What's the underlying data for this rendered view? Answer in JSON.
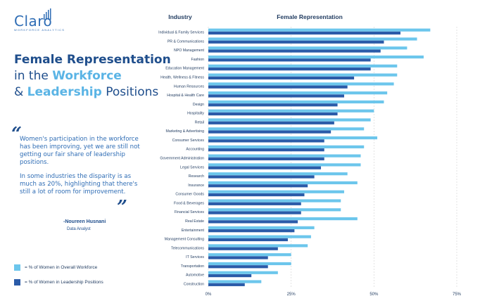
{
  "brand": {
    "name": "Claro",
    "tagline": "WORKFORCE ANALYTICS"
  },
  "headline": {
    "line1": "Female Representation",
    "line2_pre": "in the ",
    "line2_em": "Workforce",
    "line3_pre": "& ",
    "line3_em": "Leadership",
    "line3_post": " Positions"
  },
  "quote": {
    "open_mark": "“",
    "close_mark": "”",
    "p1": "Women's participation in the workforce has been improving, yet we are still not getting our fair share of leadership positions.",
    "p2": "In some industries the disparity is as much as 20%, highlighting that there's still a lot of room for improvement.",
    "author": "-Noureen Husnani",
    "role": "Data Analyst"
  },
  "legend": {
    "workforce": "= % of Women in Overall Workforce",
    "leadership": "= % of Women in Leadership Positions"
  },
  "colors": {
    "workforce": "#6cc6ec",
    "leadership": "#2b5ba8",
    "brand": "#1f4e8c"
  },
  "chart_data": {
    "type": "bar",
    "orientation": "horizontal",
    "header_category": "Industry",
    "title": "Female Representation",
    "categories": [
      "Individual & Family Services",
      "PR & Communications",
      "NPO Management",
      "Fashion",
      "Education Management",
      "Health, Wellness & Fitness",
      "Human Resources",
      "Hospital & Health Care",
      "Design",
      "Hospitality",
      "Retail",
      "Marketing & Advertising",
      "Consumer Services",
      "Accounting",
      "Government Administration",
      "Legal Services",
      "Research",
      "Insurance",
      "Consumer Goods",
      "Food & Beverages",
      "Financial Services",
      "Real Estate",
      "Entertainment",
      "Management Consulting",
      "Telecommunications",
      "IT Services",
      "Transportation",
      "Automotive",
      "Construction"
    ],
    "series": [
      {
        "name": "% of Women in Overall Workforce",
        "values": [
          67,
          63,
          60,
          65,
          57,
          57,
          56,
          54,
          53,
          50,
          49,
          47,
          51,
          47,
          46,
          46,
          42,
          45,
          41,
          40,
          40,
          45,
          32,
          31,
          30,
          25,
          25,
          21,
          16
        ]
      },
      {
        "name": "% of Women in Leadership Positions",
        "values": [
          58,
          53,
          52,
          49,
          49,
          44,
          42,
          41,
          39,
          39,
          38,
          37,
          35,
          35,
          35,
          34,
          32,
          30,
          29,
          28,
          28,
          27,
          26,
          24,
          21,
          18,
          18,
          13,
          11
        ]
      }
    ],
    "ticks": [
      "0%",
      "25%",
      "50%",
      "75%"
    ],
    "xlim": [
      0,
      75
    ],
    "grid": true
  }
}
